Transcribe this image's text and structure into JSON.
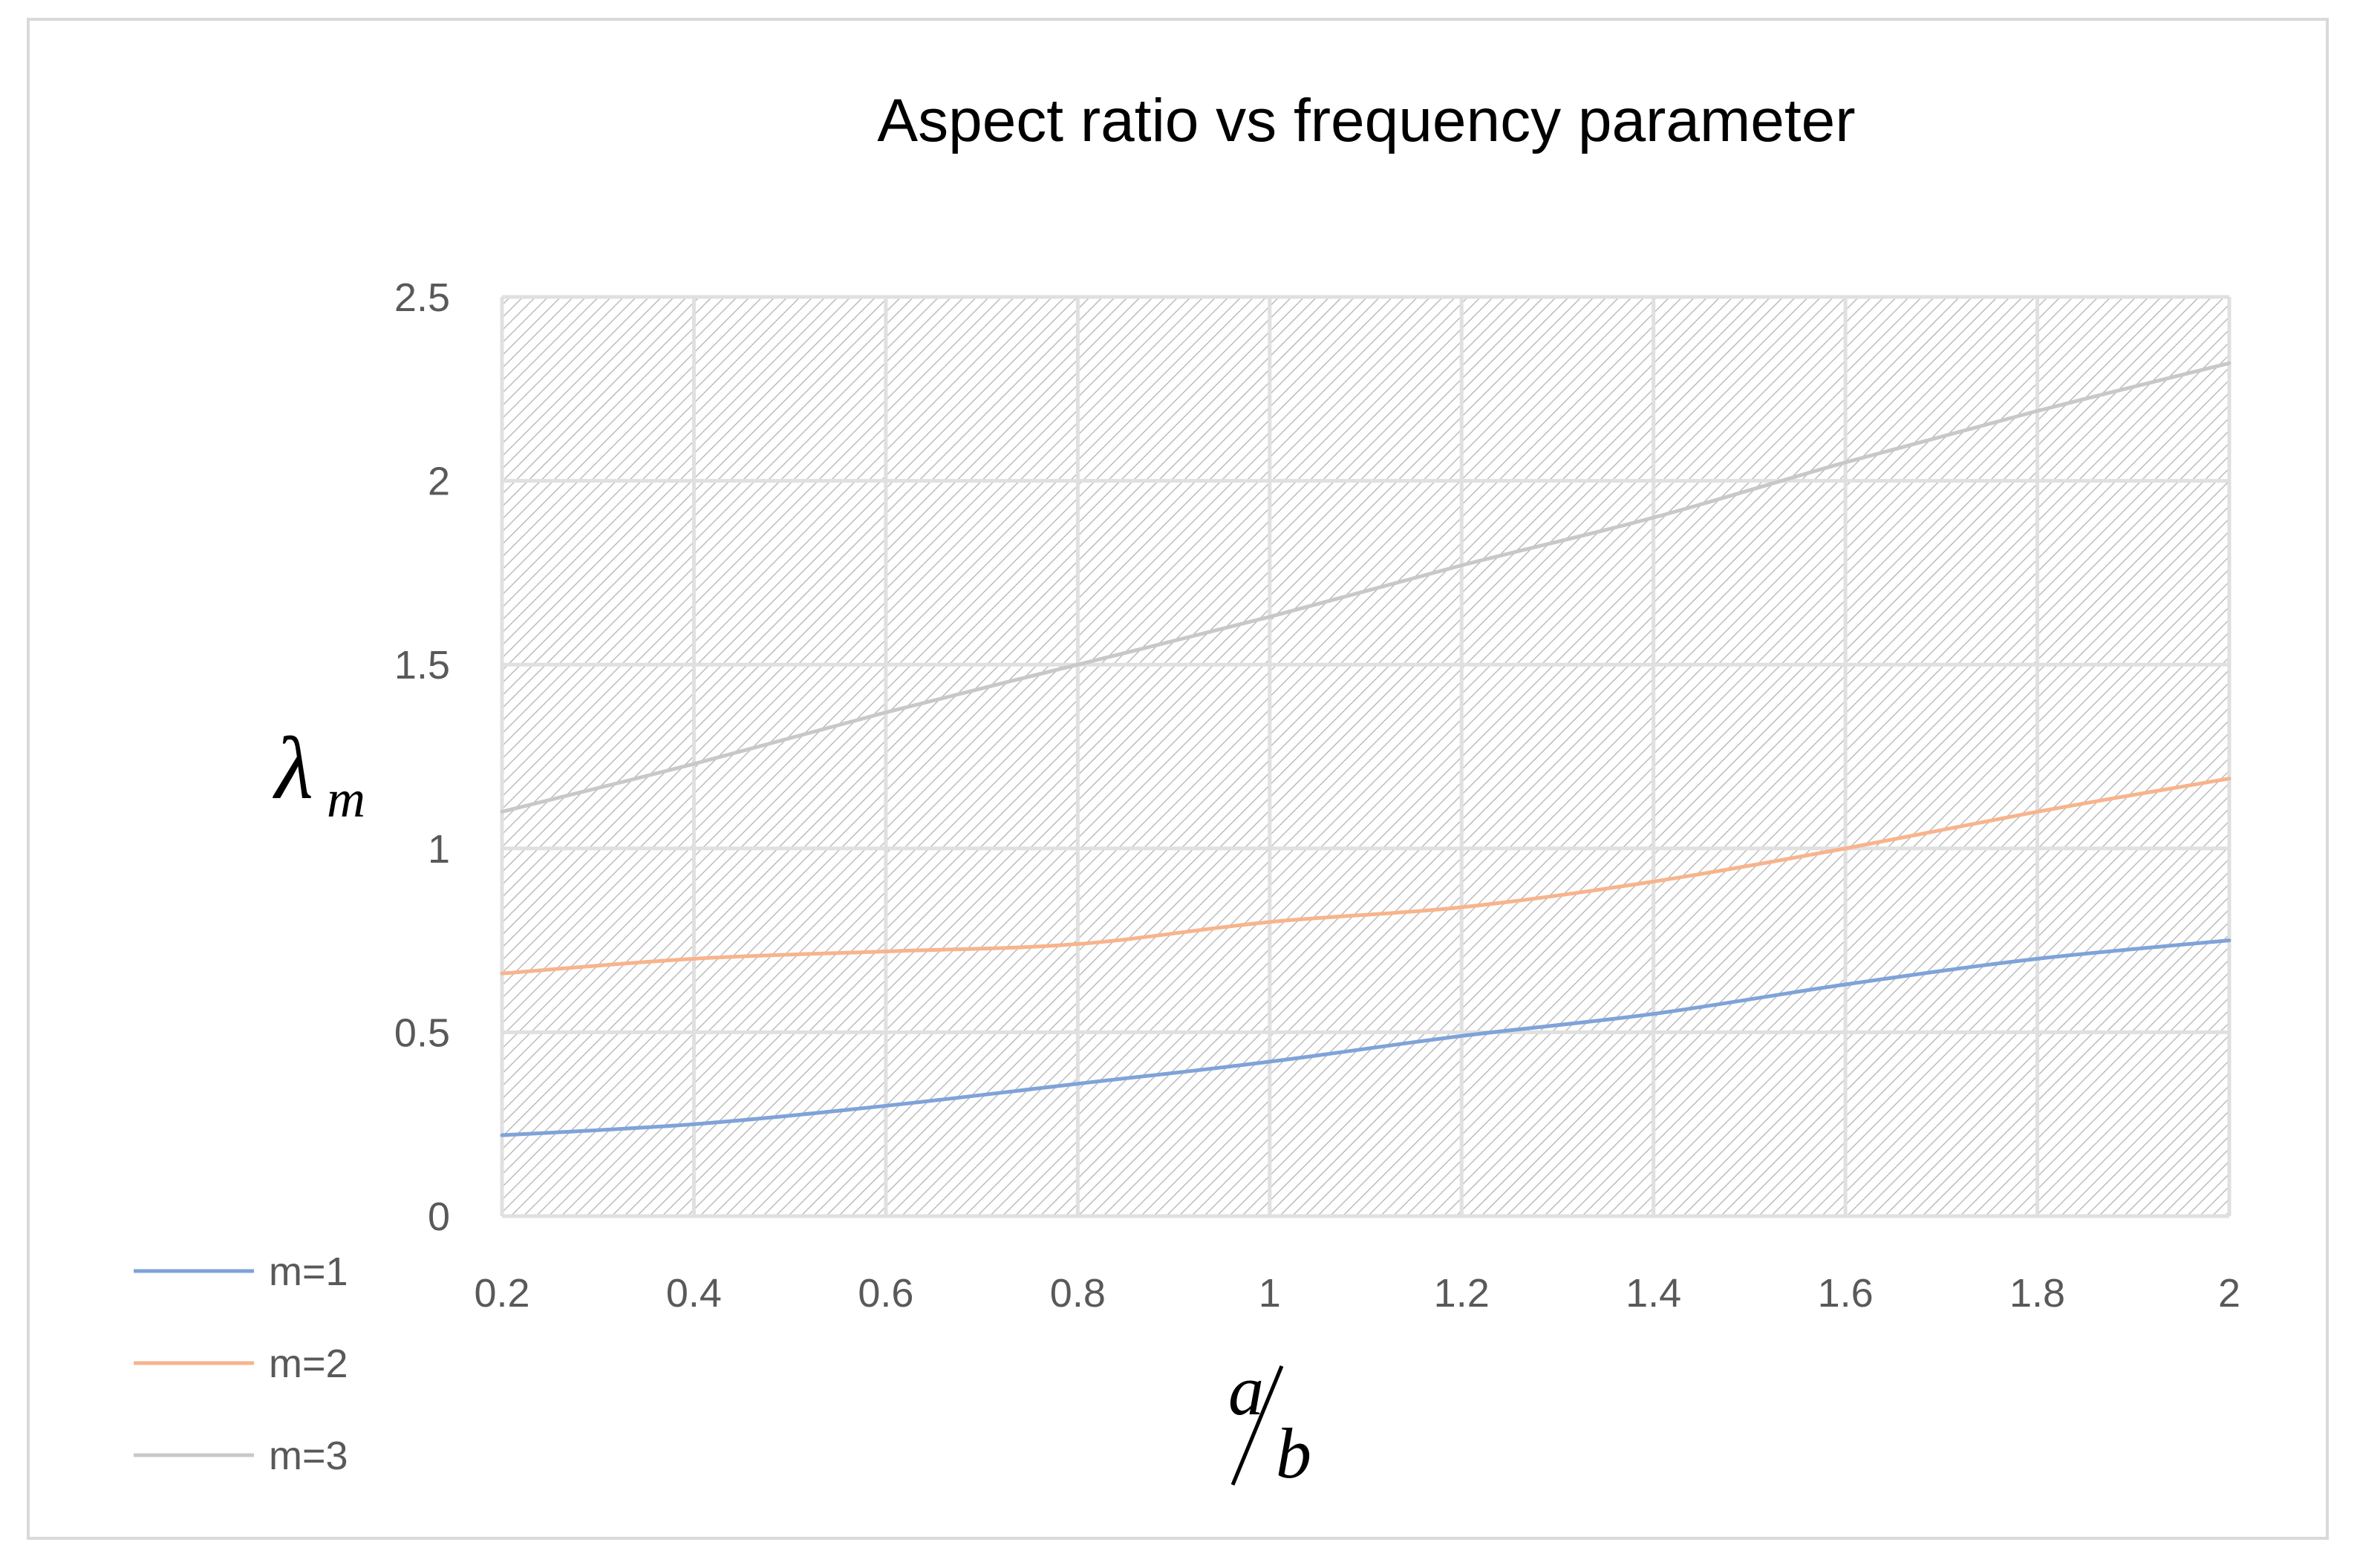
{
  "chart_data": {
    "type": "line",
    "title": "Aspect ratio vs frequency parameter",
    "xlabel": {
      "numerator": "a",
      "denominator": "b"
    },
    "ylabel": {
      "symbol": "λ",
      "subscript": "m"
    },
    "x": [
      0.2,
      0.4,
      0.6,
      0.8,
      1.0,
      1.2,
      1.4,
      1.6,
      1.8,
      2.0
    ],
    "xlim": [
      0.2,
      2
    ],
    "ylim": [
      0,
      2.5
    ],
    "xticks": [
      "0.2",
      "0.4",
      "0.6",
      "0.8",
      "1",
      "1.2",
      "1.4",
      "1.6",
      "1.8",
      "2"
    ],
    "yticks": [
      "0",
      "0.5",
      "1",
      "1.5",
      "2",
      "2.5"
    ],
    "yticks_values": [
      0,
      0.5,
      1,
      1.5,
      2,
      2.5
    ],
    "grid": true,
    "plot_background": "hatched",
    "legend_position": "bottom-left",
    "series": [
      {
        "name": "m=1",
        "color": "#7fa3d8",
        "values": [
          0.22,
          0.25,
          0.3,
          0.36,
          0.42,
          0.49,
          0.55,
          0.63,
          0.7,
          0.75
        ]
      },
      {
        "name": "m=2",
        "color": "#f7b48c",
        "values": [
          0.66,
          0.7,
          0.72,
          0.74,
          0.8,
          0.84,
          0.91,
          1.0,
          1.1,
          1.19
        ]
      },
      {
        "name": "m=3",
        "color": "#c8c8c8",
        "values": [
          1.1,
          1.23,
          1.37,
          1.5,
          1.63,
          1.77,
          1.9,
          2.05,
          2.19,
          2.32
        ]
      }
    ]
  }
}
